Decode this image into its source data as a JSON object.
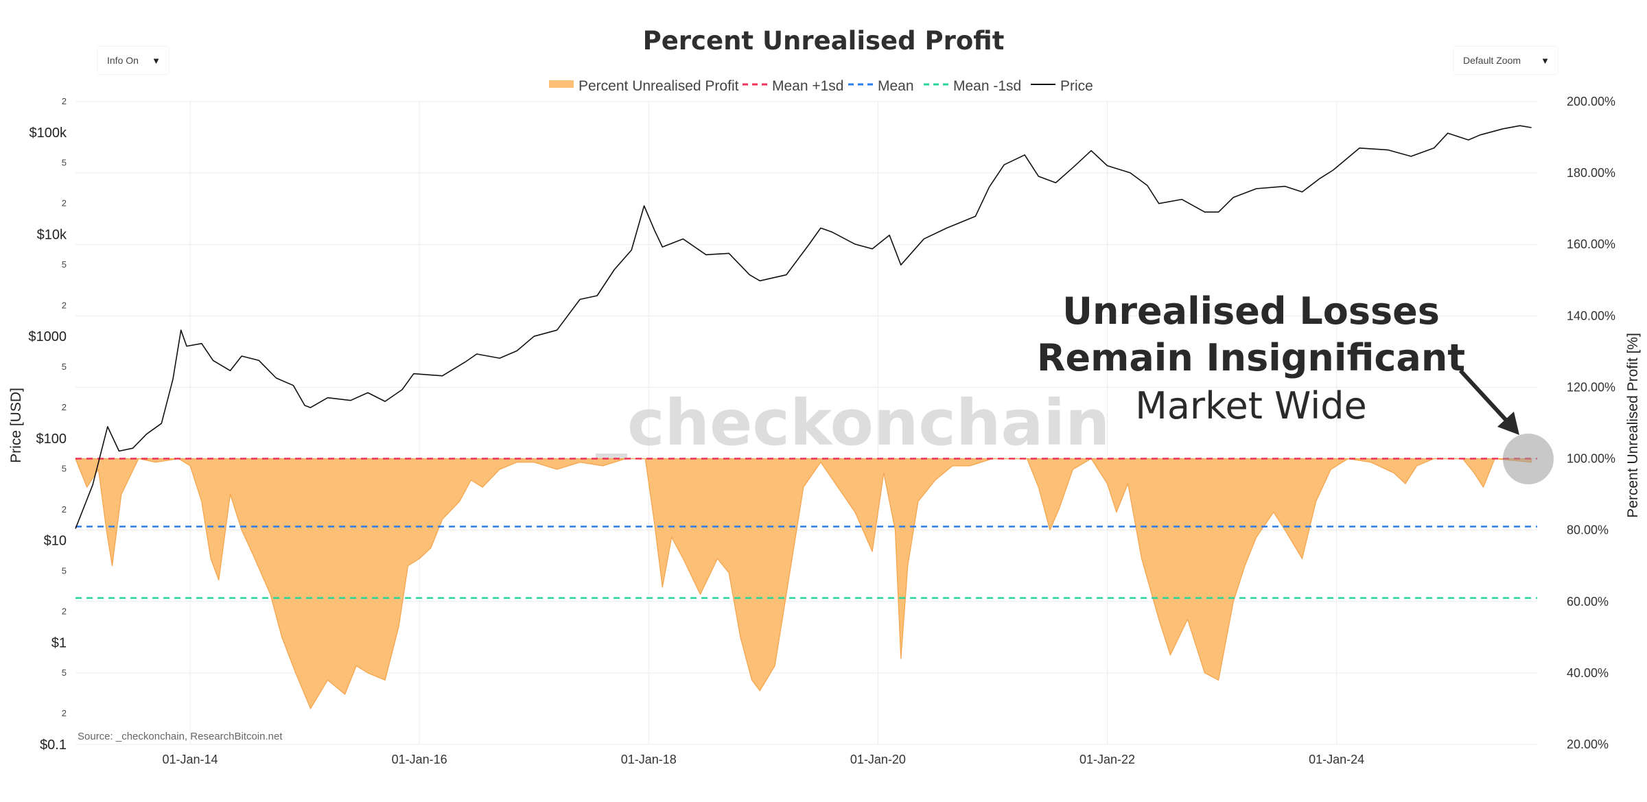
{
  "controls": {
    "info_toggle": "Info On",
    "zoom_select": "Default Zoom",
    "arrow_glyph": "▼"
  },
  "chart_data": {
    "type": "line",
    "title": "Percent Unrealised Profit",
    "legend": [
      {
        "name": "Percent Unrealised Profit",
        "style": "area",
        "color": "#fbbf76"
      },
      {
        "name": "Mean +1sd",
        "style": "dash",
        "color": "#f0325a"
      },
      {
        "name": "Mean",
        "style": "dash",
        "color": "#2b7de9"
      },
      {
        "name": "Mean -1sd",
        "style": "dash",
        "color": "#27d69a"
      },
      {
        "name": "Price",
        "style": "line",
        "color": "#111111"
      }
    ],
    "x_axis": {
      "ticks": [
        "01-Jan-14",
        "01-Jan-16",
        "01-Jan-18",
        "01-Jan-20",
        "01-Jan-22",
        "01-Jan-24"
      ],
      "range": [
        "2012-12",
        "2025-09"
      ]
    },
    "y_left": {
      "label": "Price [USD]",
      "scale": "log",
      "range": [
        0.1,
        200000
      ],
      "major_ticks": [
        "$0.1",
        "$1",
        "$10",
        "$100",
        "$1000",
        "$10k",
        "$100k"
      ],
      "minor_ticks": [
        "2",
        "5"
      ]
    },
    "y_right": {
      "label": "Percent Unrealised Profit [%]",
      "range": [
        20,
        200
      ],
      "ticks": [
        "20.00%",
        "40.00%",
        "60.00%",
        "80.00%",
        "100.00%",
        "120.00%",
        "140.00%",
        "160.00%",
        "180.00%",
        "200.00%"
      ]
    },
    "reference_lines": {
      "mean_plus_1sd": 100,
      "mean": 81,
      "mean_minus_1sd": 61
    },
    "price_series": {
      "name": "Price",
      "points": [
        [
          2013.0,
          13
        ],
        [
          2013.15,
          35
        ],
        [
          2013.28,
          130
        ],
        [
          2013.38,
          75
        ],
        [
          2013.5,
          80
        ],
        [
          2013.62,
          110
        ],
        [
          2013.75,
          140
        ],
        [
          2013.85,
          380
        ],
        [
          2013.92,
          1150
        ],
        [
          2013.97,
          800
        ],
        [
          2014.1,
          850
        ],
        [
          2014.2,
          580
        ],
        [
          2014.35,
          460
        ],
        [
          2014.45,
          640
        ],
        [
          2014.6,
          580
        ],
        [
          2014.75,
          390
        ],
        [
          2014.9,
          330
        ],
        [
          2015.0,
          210
        ],
        [
          2015.05,
          200
        ],
        [
          2015.2,
          250
        ],
        [
          2015.4,
          235
        ],
        [
          2015.55,
          280
        ],
        [
          2015.7,
          230
        ],
        [
          2015.85,
          300
        ],
        [
          2015.95,
          430
        ],
        [
          2016.2,
          410
        ],
        [
          2016.4,
          560
        ],
        [
          2016.5,
          670
        ],
        [
          2016.7,
          610
        ],
        [
          2016.85,
          720
        ],
        [
          2017.0,
          1000
        ],
        [
          2017.2,
          1150
        ],
        [
          2017.4,
          2300
        ],
        [
          2017.55,
          2500
        ],
        [
          2017.7,
          4500
        ],
        [
          2017.85,
          7000
        ],
        [
          2017.96,
          19000
        ],
        [
          2018.05,
          11000
        ],
        [
          2018.12,
          7500
        ],
        [
          2018.3,
          9000
        ],
        [
          2018.5,
          6300
        ],
        [
          2018.7,
          6500
        ],
        [
          2018.88,
          4000
        ],
        [
          2018.97,
          3500
        ],
        [
          2019.2,
          4000
        ],
        [
          2019.4,
          8000
        ],
        [
          2019.5,
          11500
        ],
        [
          2019.6,
          10500
        ],
        [
          2019.8,
          8000
        ],
        [
          2019.95,
          7200
        ],
        [
          2020.1,
          9800
        ],
        [
          2020.2,
          5000
        ],
        [
          2020.4,
          9000
        ],
        [
          2020.6,
          11500
        ],
        [
          2020.85,
          15000
        ],
        [
          2020.97,
          29000
        ],
        [
          2021.1,
          48000
        ],
        [
          2021.28,
          60000
        ],
        [
          2021.4,
          37000
        ],
        [
          2021.55,
          32000
        ],
        [
          2021.7,
          45000
        ],
        [
          2021.86,
          66000
        ],
        [
          2022.0,
          47000
        ],
        [
          2022.2,
          40000
        ],
        [
          2022.35,
          30000
        ],
        [
          2022.45,
          20000
        ],
        [
          2022.65,
          22000
        ],
        [
          2022.85,
          16500
        ],
        [
          2022.97,
          16500
        ],
        [
          2023.1,
          23000
        ],
        [
          2023.3,
          28000
        ],
        [
          2023.55,
          29500
        ],
        [
          2023.7,
          26000
        ],
        [
          2023.85,
          35000
        ],
        [
          2023.97,
          42500
        ],
        [
          2024.2,
          70000
        ],
        [
          2024.45,
          67000
        ],
        [
          2024.65,
          58000
        ],
        [
          2024.85,
          70000
        ],
        [
          2024.97,
          98000
        ],
        [
          2025.15,
          84000
        ],
        [
          2025.25,
          94000
        ],
        [
          2025.45,
          108000
        ],
        [
          2025.6,
          116000
        ],
        [
          2025.7,
          111000
        ]
      ]
    },
    "percent_unrealised_profit_series": {
      "name": "Percent Unrealised Profit",
      "points": [
        [
          2013.0,
          100
        ],
        [
          2013.1,
          92
        ],
        [
          2013.2,
          97
        ],
        [
          2013.27,
          80
        ],
        [
          2013.32,
          70
        ],
        [
          2013.4,
          90
        ],
        [
          2013.55,
          100
        ],
        [
          2013.7,
          99
        ],
        [
          2013.9,
          100
        ],
        [
          2014.0,
          98
        ],
        [
          2014.1,
          88
        ],
        [
          2014.18,
          72
        ],
        [
          2014.25,
          66
        ],
        [
          2014.35,
          90
        ],
        [
          2014.45,
          80
        ],
        [
          2014.55,
          73
        ],
        [
          2014.7,
          62
        ],
        [
          2014.8,
          50
        ],
        [
          2014.92,
          40
        ],
        [
          2015.05,
          30
        ],
        [
          2015.2,
          38
        ],
        [
          2015.35,
          34
        ],
        [
          2015.45,
          42
        ],
        [
          2015.55,
          40
        ],
        [
          2015.7,
          38
        ],
        [
          2015.82,
          53
        ],
        [
          2015.9,
          70
        ],
        [
          2016.0,
          72
        ],
        [
          2016.1,
          75
        ],
        [
          2016.2,
          83
        ],
        [
          2016.35,
          88
        ],
        [
          2016.45,
          94
        ],
        [
          2016.55,
          92
        ],
        [
          2016.7,
          97
        ],
        [
          2016.85,
          99
        ],
        [
          2017.0,
          99
        ],
        [
          2017.2,
          97
        ],
        [
          2017.4,
          99
        ],
        [
          2017.6,
          98
        ],
        [
          2017.8,
          100
        ],
        [
          2017.97,
          100
        ],
        [
          2018.05,
          82
        ],
        [
          2018.12,
          64
        ],
        [
          2018.2,
          78
        ],
        [
          2018.3,
          72
        ],
        [
          2018.45,
          62
        ],
        [
          2018.6,
          72
        ],
        [
          2018.7,
          68
        ],
        [
          2018.8,
          50
        ],
        [
          2018.9,
          38
        ],
        [
          2018.97,
          35
        ],
        [
          2019.1,
          42
        ],
        [
          2019.2,
          62
        ],
        [
          2019.35,
          92
        ],
        [
          2019.5,
          99
        ],
        [
          2019.65,
          92
        ],
        [
          2019.8,
          85
        ],
        [
          2019.95,
          74
        ],
        [
          2020.05,
          96
        ],
        [
          2020.15,
          80
        ],
        [
          2020.2,
          44
        ],
        [
          2020.26,
          70
        ],
        [
          2020.35,
          88
        ],
        [
          2020.5,
          94
        ],
        [
          2020.65,
          98
        ],
        [
          2020.8,
          98
        ],
        [
          2021.0,
          100
        ],
        [
          2021.3,
          100
        ],
        [
          2021.4,
          92
        ],
        [
          2021.5,
          80
        ],
        [
          2021.58,
          86
        ],
        [
          2021.7,
          97
        ],
        [
          2021.86,
          100
        ],
        [
          2022.0,
          93
        ],
        [
          2022.08,
          85
        ],
        [
          2022.18,
          93
        ],
        [
          2022.3,
          72
        ],
        [
          2022.45,
          55
        ],
        [
          2022.55,
          45
        ],
        [
          2022.7,
          55
        ],
        [
          2022.85,
          40
        ],
        [
          2022.97,
          38
        ],
        [
          2023.1,
          60
        ],
        [
          2023.2,
          70
        ],
        [
          2023.3,
          78
        ],
        [
          2023.45,
          85
        ],
        [
          2023.55,
          80
        ],
        [
          2023.7,
          72
        ],
        [
          2023.82,
          88
        ],
        [
          2023.95,
          97
        ],
        [
          2024.1,
          100
        ],
        [
          2024.3,
          99
        ],
        [
          2024.5,
          96
        ],
        [
          2024.6,
          93
        ],
        [
          2024.7,
          98
        ],
        [
          2024.85,
          100
        ],
        [
          2025.1,
          100
        ],
        [
          2025.2,
          96
        ],
        [
          2025.28,
          92
        ],
        [
          2025.38,
          100
        ],
        [
          2025.7,
          99
        ]
      ]
    },
    "watermark": "_checkonchain",
    "annotation": {
      "line1": "Unrealised Losses",
      "line2": "Remain Insignificant",
      "line3": "Market Wide"
    },
    "source": "Source: _checkonchain, ResearchBitcoin.net"
  }
}
